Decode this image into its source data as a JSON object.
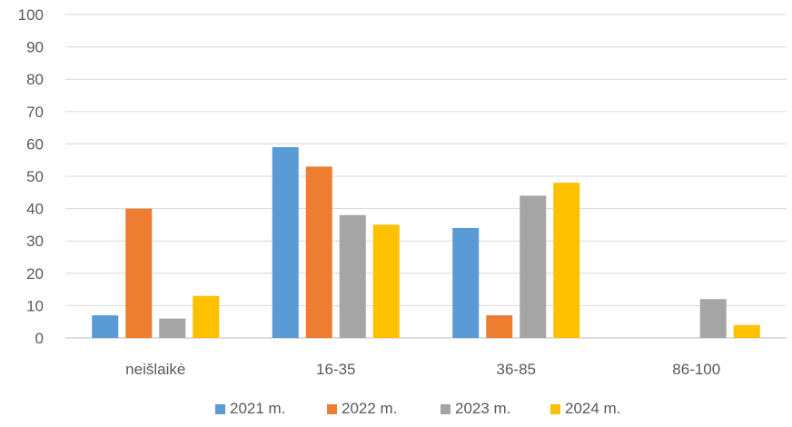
{
  "chart_data": {
    "type": "bar",
    "categories": [
      "neišlaikė",
      "16-35",
      "36-85",
      "86-100"
    ],
    "series": [
      {
        "name": "2021 m.",
        "color": "#5B9BD5",
        "values": [
          7,
          59,
          34,
          0
        ]
      },
      {
        "name": "2022 m.",
        "color": "#ED7D31",
        "values": [
          40,
          53,
          7,
          0
        ]
      },
      {
        "name": "2023 m.",
        "color": "#A5A5A5",
        "values": [
          6,
          38,
          44,
          12
        ]
      },
      {
        "name": "2024 m.",
        "color": "#FFC000",
        "values": [
          13,
          35,
          48,
          4
        ]
      }
    ],
    "ylim": [
      0,
      100
    ],
    "yticks": [
      "0",
      "10",
      "20",
      "30",
      "40",
      "50",
      "60",
      "70",
      "80",
      "90",
      "100"
    ],
    "grid": true,
    "legend_position": "bottom"
  }
}
